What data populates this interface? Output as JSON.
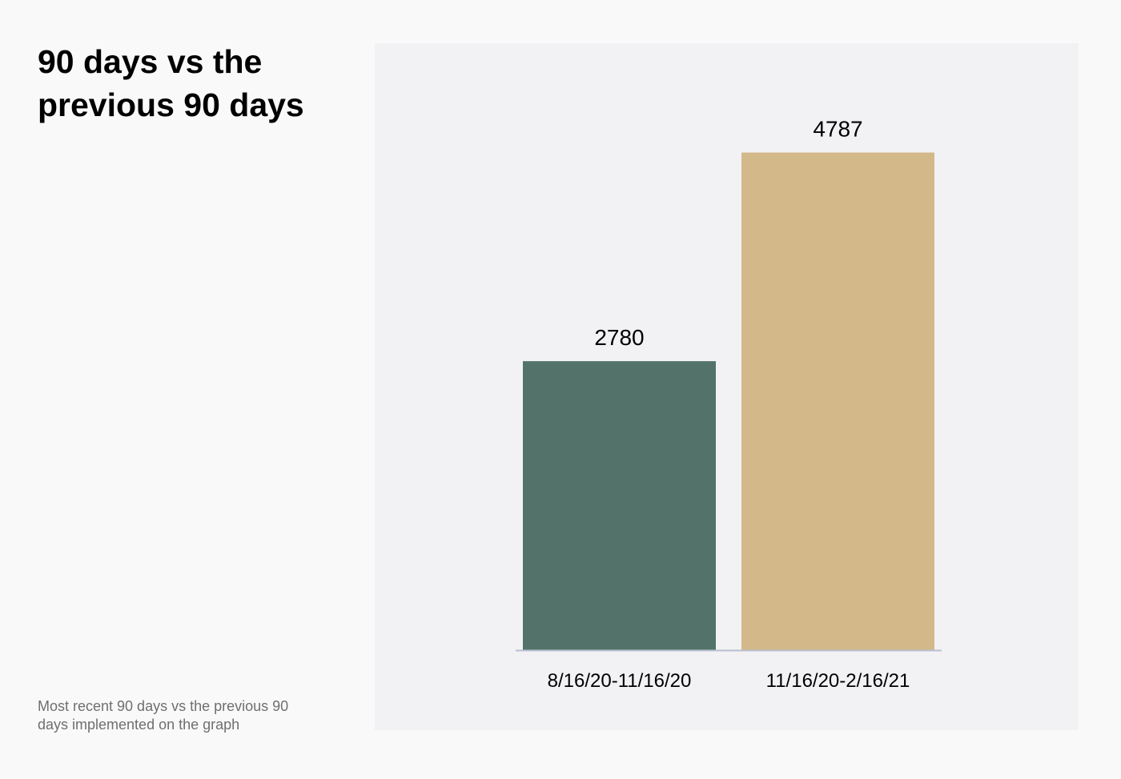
{
  "header": {
    "title": "90 days vs the previous 90 days"
  },
  "footer": {
    "note": "Most recent 90 days vs the previous 90 days implemented on the graph"
  },
  "colors": {
    "page_background": "#f9f9f9",
    "panel_background": "#f2f2f4",
    "series_previous": "#53736a",
    "series_recent": "#d3b889",
    "axis_line": "#b9bfd0"
  },
  "chart_data": {
    "type": "bar",
    "title": "90 days vs the previous 90 days",
    "xlabel": "",
    "ylabel": "",
    "categories": [
      "8/16/20-11/16/20",
      "11/16/20-2/16/21"
    ],
    "values": [
      2780,
      4787
    ],
    "bar_colors": [
      "#53736a",
      "#d3b889"
    ],
    "data_labels": [
      "2780",
      "4787"
    ],
    "ylim": [
      0,
      5500
    ],
    "grid": false,
    "legend": "none"
  }
}
